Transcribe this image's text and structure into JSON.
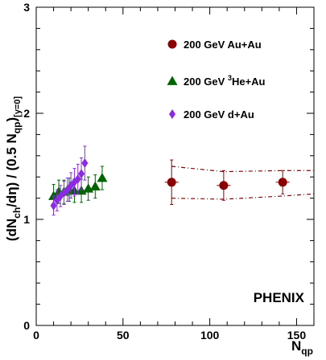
{
  "chart_data": {
    "type": "scatter",
    "xlabel": "N",
    "xlabel_sub": "qp",
    "ylabel": "(dN_ch/dη) / (0.5 N_qp)_[y=0]",
    "ylabel_parts": {
      "open": "(dN",
      "sub1": "ch",
      "mid": "/dη) / (0.5 N",
      "sub2": "qp",
      "close": ")",
      "sub3": "[y=0]"
    },
    "xlim": [
      0,
      160
    ],
    "ylim": [
      0,
      3
    ],
    "x_ticks": [
      0,
      50,
      100,
      150
    ],
    "y_ticks": [
      0,
      1,
      2,
      3
    ],
    "x_tick_labels": [
      "0",
      "50",
      "100",
      "150"
    ],
    "y_tick_labels": [
      "0",
      "1",
      "2",
      "3"
    ],
    "grid": false,
    "legend_position": "top-right",
    "annotation": "PHENIX",
    "series": [
      {
        "name": "200 GeV Au+Au",
        "label_parts": [
          "200 GeV Au+Au"
        ],
        "marker": "circle",
        "color": "#8b0000",
        "points": [
          {
            "x": 78,
            "y": 1.35,
            "yerr": 0.21,
            "xerr": 4
          },
          {
            "x": 108,
            "y": 1.32,
            "yerr": 0.14,
            "xerr": 4
          },
          {
            "x": 142,
            "y": 1.35,
            "yerr": 0.11,
            "xerr": 4
          }
        ],
        "band_upper": [
          [
            78,
            1.5
          ],
          [
            108,
            1.45
          ],
          [
            142,
            1.46
          ],
          [
            160,
            1.46
          ]
        ],
        "band_lower": [
          [
            78,
            1.2
          ],
          [
            108,
            1.19
          ],
          [
            142,
            1.22
          ],
          [
            160,
            1.24
          ]
        ]
      },
      {
        "name": "200 GeV 3He+Au",
        "label_parts": [
          "200 GeV ",
          "3",
          "He+Au"
        ],
        "marker": "triangle",
        "color": "#006400",
        "points": [
          {
            "x": 10,
            "y": 1.22,
            "yerr": 0.11
          },
          {
            "x": 13,
            "y": 1.26,
            "yerr": 0.11
          },
          {
            "x": 16,
            "y": 1.26,
            "yerr": 0.11
          },
          {
            "x": 19,
            "y": 1.28,
            "yerr": 0.11
          },
          {
            "x": 22,
            "y": 1.27,
            "yerr": 0.11
          },
          {
            "x": 26,
            "y": 1.27,
            "yerr": 0.11
          },
          {
            "x": 30,
            "y": 1.29,
            "yerr": 0.11
          },
          {
            "x": 34,
            "y": 1.31,
            "yerr": 0.11
          },
          {
            "x": 38,
            "y": 1.39,
            "yerr": 0.11
          }
        ]
      },
      {
        "name": "200 GeV d+Au",
        "label_parts": [
          "200 GeV d+Au"
        ],
        "marker": "diamond",
        "color": "#8a2be2",
        "points": [
          {
            "x": 10,
            "y": 1.13,
            "yerr": 0.09
          },
          {
            "x": 12,
            "y": 1.18,
            "yerr": 0.1
          },
          {
            "x": 14,
            "y": 1.22,
            "yerr": 0.1
          },
          {
            "x": 16,
            "y": 1.25,
            "yerr": 0.11
          },
          {
            "x": 18,
            "y": 1.28,
            "yerr": 0.11
          },
          {
            "x": 20,
            "y": 1.32,
            "yerr": 0.12
          },
          {
            "x": 22,
            "y": 1.35,
            "yerr": 0.13
          },
          {
            "x": 24,
            "y": 1.38,
            "yerr": 0.14
          },
          {
            "x": 26,
            "y": 1.43,
            "yerr": 0.15
          },
          {
            "x": 28,
            "y": 1.53,
            "yerr": 0.16
          }
        ]
      }
    ]
  }
}
